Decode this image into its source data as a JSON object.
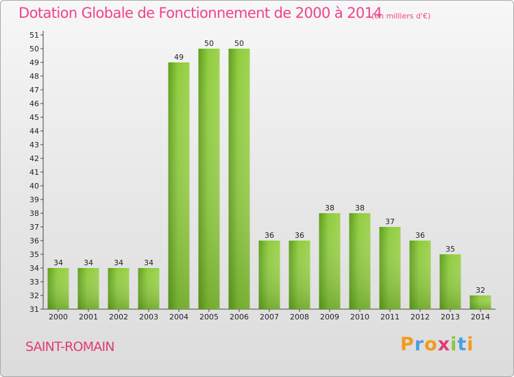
{
  "chart_data": {
    "type": "bar",
    "title": "Dotation Globale de Fonctionnement de 2000 à 2014",
    "subtitle": "(en milliers d'€)",
    "xlabel": "",
    "ylabel": "",
    "categories": [
      "2000",
      "2001",
      "2002",
      "2003",
      "2004",
      "2005",
      "2006",
      "2007",
      "2008",
      "2009",
      "2010",
      "2011",
      "2012",
      "2013",
      "2014"
    ],
    "values": [
      34,
      34,
      34,
      34,
      49,
      50,
      50,
      36,
      36,
      38,
      38,
      37,
      36,
      35,
      32
    ],
    "ylim": [
      31,
      51
    ],
    "ytick_step": 1,
    "grid": false,
    "bar_color": "#7dbf2e"
  },
  "commune": "SAINT-ROMAIN",
  "brand": {
    "letters": [
      "P",
      "r",
      "o",
      "x",
      "i",
      "t",
      "i"
    ],
    "colors": [
      "#f29a1e",
      "#4aa0de",
      "#f29a1e",
      "#e23c72",
      "#8cc63f",
      "#4aa0de",
      "#f29a1e"
    ]
  }
}
